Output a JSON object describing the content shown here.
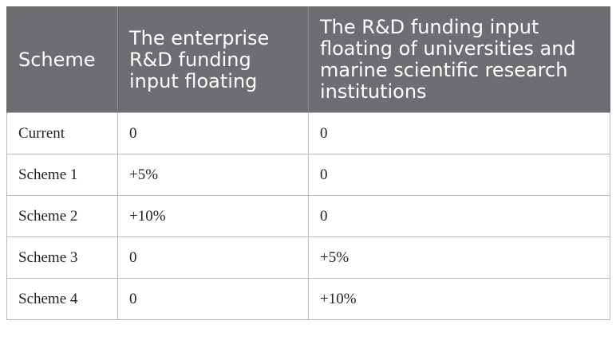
{
  "table": {
    "headers": [
      "Scheme",
      "The enterprise R&D funding input floating",
      "The R&D funding input floating of universities and marine scientific research institutions"
    ],
    "rows": [
      [
        "Current",
        "0",
        "0"
      ],
      [
        "Scheme 1",
        "+5%",
        "0"
      ],
      [
        "Scheme 2",
        "+10%",
        "0"
      ],
      [
        "Scheme 3",
        "0",
        "+5%"
      ],
      [
        "Scheme 4",
        "0",
        "+10%"
      ]
    ]
  }
}
